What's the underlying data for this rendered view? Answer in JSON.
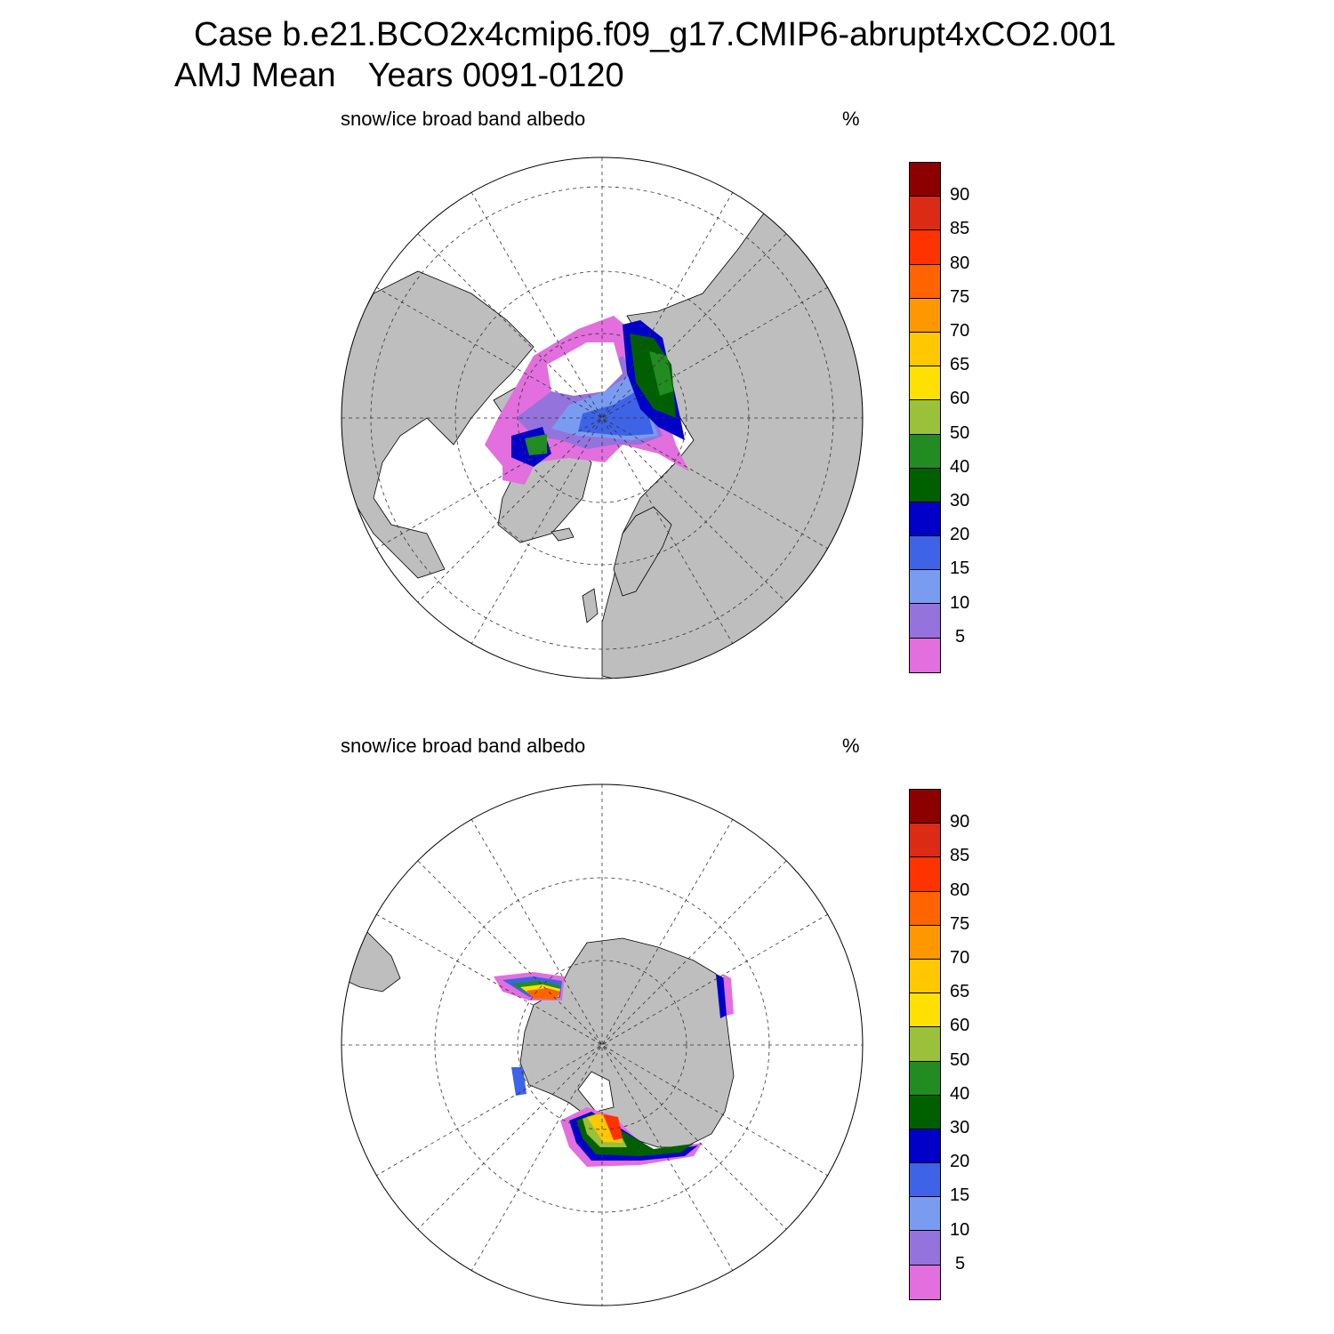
{
  "header": {
    "case_line": "Case b.e21.BCO2x4cmip6.f09_g17.CMIP6-abrupt4xCO2.001",
    "season": "AMJ Mean",
    "years": "Years 0091-0120"
  },
  "colors": {
    "land": "#bebebe",
    "ocean": "#ffffff",
    "scale": [
      "#e26fdd",
      "#9473dc",
      "#7a9cf0",
      "#3e63e6",
      "#0000c8",
      "#006000",
      "#228b22",
      "#9bc03a",
      "#ffe000",
      "#ffc800",
      "#ff9800",
      "#ff6400",
      "#ff3200",
      "#dc2b14",
      "#8c0000"
    ]
  },
  "panels": [
    {
      "name": "Northern Hemisphere",
      "variable": "snow/ice broad band albedo",
      "units": "%",
      "colorbar_labels": [
        "5",
        "10",
        "15",
        "20",
        "30",
        "40",
        "50",
        "60",
        "65",
        "70",
        "75",
        "80",
        "85",
        "90"
      ]
    },
    {
      "name": "Southern Hemisphere",
      "variable": "snow/ice broad band albedo",
      "units": "%",
      "colorbar_labels": [
        "5",
        "10",
        "15",
        "20",
        "30",
        "40",
        "50",
        "60",
        "65",
        "70",
        "75",
        "80",
        "85",
        "90"
      ]
    }
  ]
}
